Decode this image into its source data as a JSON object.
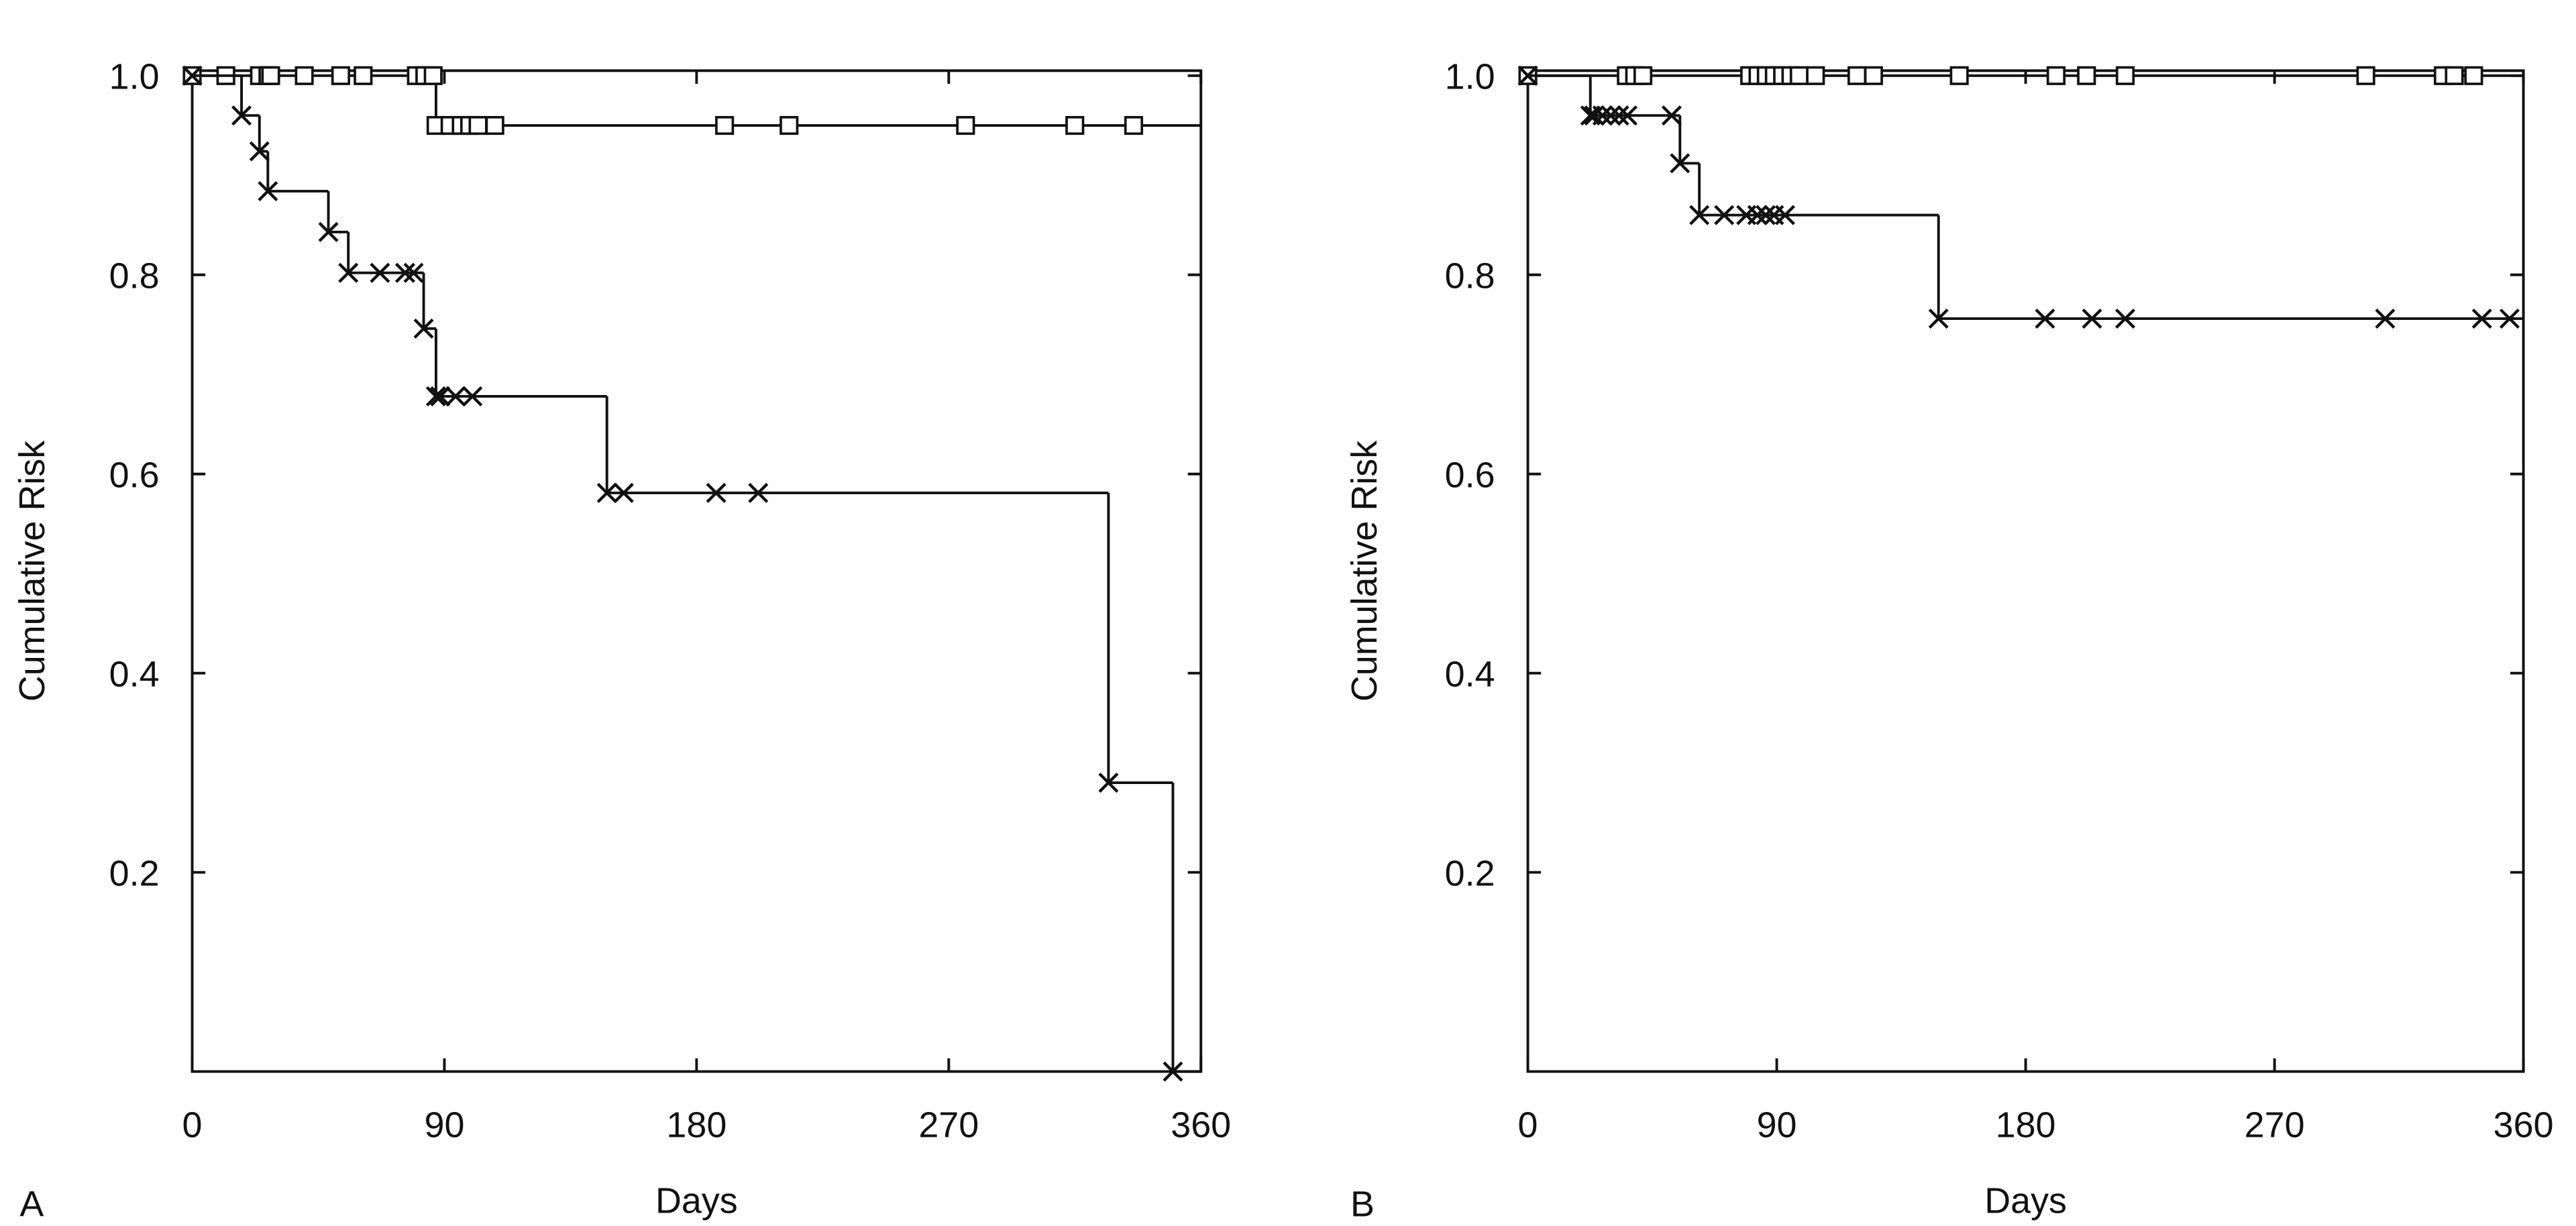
{
  "chart_data": [
    {
      "type": "line",
      "step": "post",
      "panel_label": "A",
      "x_label": "Days",
      "y_label": "Cumulative Risk",
      "xlim": [
        0,
        360
      ],
      "xticks": [
        0,
        90,
        180,
        270,
        360
      ],
      "ylim": [
        0,
        1.005
      ],
      "yticks": [
        0.2,
        0.4,
        0.6,
        0.8,
        {
          "value": 1,
          "label": "1.0"
        }
      ],
      "series": [
        {
          "marker": "square",
          "color": "#111111",
          "x": [
            0,
            12,
            24,
            27,
            28,
            40,
            53,
            61,
            80,
            83,
            86,
            87,
            92,
            96,
            99,
            102,
            108,
            190,
            213,
            276,
            315,
            336
          ],
          "values": [
            1,
            1,
            1,
            1,
            1,
            1,
            1,
            1,
            1,
            1,
            1,
            0.95,
            0.95,
            0.95,
            0.95,
            0.95,
            0.95,
            0.95,
            0.95,
            0.95,
            0.95,
            0.95
          ]
        },
        {
          "marker": "x",
          "color": "#111111",
          "x": [
            0,
            17.6,
            24,
            27,
            48.6,
            55.7,
            67,
            76,
            79,
            82.6,
            87,
            88.5,
            94,
            100,
            148,
            154,
            187,
            202,
            327,
            350
          ],
          "values": [
            1,
            0.96,
            0.924,
            0.884,
            0.843,
            0.802,
            0.802,
            0.802,
            0.802,
            0.746,
            0.678,
            0.678,
            0.678,
            0.678,
            0.581,
            0.581,
            0.581,
            0.581,
            0.29,
            0
          ]
        }
      ]
    },
    {
      "type": "line",
      "step": "post",
      "panel_label": "B",
      "x_label": "Days",
      "y_label": "Cumulative Risk",
      "xlim": [
        0,
        360
      ],
      "xticks": [
        0,
        90,
        180,
        270,
        360
      ],
      "ylim": [
        0,
        1.005
      ],
      "yticks": [
        0.2,
        0.4,
        0.6,
        0.8,
        {
          "value": 1,
          "label": "1.0"
        }
      ],
      "series": [
        {
          "marker": "square",
          "color": "#111111",
          "x": [
            0,
            35.6,
            38.6,
            41.6,
            80.2,
            83.2,
            86.2,
            89.1,
            92.1,
            95.1,
            98.1,
            104,
            119,
            125,
            156,
            191,
            202,
            216,
            303,
            331,
            335,
            342
          ],
          "values": [
            1,
            1,
            1,
            1,
            1,
            1,
            1,
            1,
            1,
            1,
            1,
            1,
            1,
            1,
            1,
            1,
            1,
            1,
            1,
            1,
            1,
            1
          ]
        },
        {
          "marker": "x",
          "color": "#111111",
          "x": [
            0,
            22.6,
            24,
            27,
            30,
            33,
            36,
            52,
            55,
            62,
            71,
            79,
            83,
            86,
            89,
            93,
            148.5,
            187,
            204,
            216,
            310,
            345,
            355
          ],
          "values": [
            1,
            0.96,
            0.96,
            0.96,
            0.96,
            0.96,
            0.96,
            0.96,
            0.912,
            0.86,
            0.86,
            0.86,
            0.86,
            0.86,
            0.86,
            0.86,
            0.756,
            0.756,
            0.756,
            0.756,
            0.756,
            0.756,
            0.756
          ]
        }
      ]
    }
  ]
}
